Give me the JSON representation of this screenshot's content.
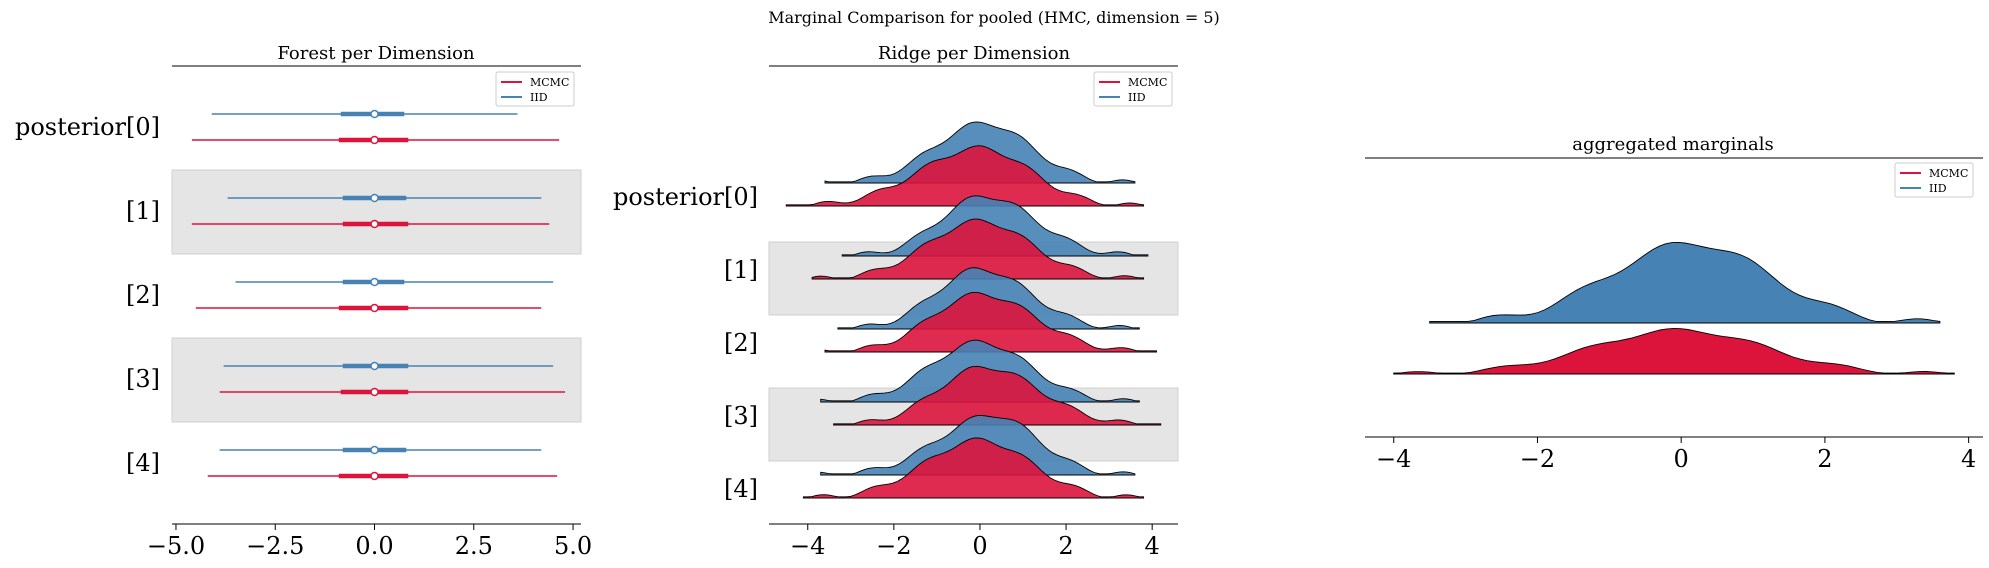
{
  "figure": {
    "suptitle": "Marginal Comparison for pooled (HMC, dimension = 5)"
  },
  "colors": {
    "mcmc": "#dc143c",
    "iid": "#4682b4",
    "band": "#e5e5e5",
    "outline": "#000000"
  },
  "legend": {
    "entries": [
      "MCMC",
      "IID"
    ]
  },
  "chart_data": [
    {
      "type": "forest",
      "title": "Forest per Dimension",
      "series_names": [
        "MCMC",
        "IID"
      ],
      "variables": [
        "posterior[0]",
        "[1]",
        "[2]",
        "[3]",
        "[4]"
      ],
      "xlim": [
        -5.1,
        5.2
      ],
      "xticks": [
        -5.0,
        -2.5,
        0.0,
        2.5,
        5.0
      ],
      "xtick_labels": [
        "−5.0",
        "−2.5",
        "0.0",
        "2.5",
        "5.0"
      ],
      "shaded_rows": [
        1,
        3
      ],
      "intervals": {
        "MCMC": [
          {
            "lo": -4.6,
            "hdi_lo": -0.9,
            "mid": 0.0,
            "hdi_hi": 0.85,
            "hi": 4.65
          },
          {
            "lo": -4.6,
            "hdi_lo": -0.8,
            "mid": 0.0,
            "hdi_hi": 0.85,
            "hi": 4.4
          },
          {
            "lo": -4.5,
            "hdi_lo": -0.9,
            "mid": 0.0,
            "hdi_hi": 0.85,
            "hi": 4.2
          },
          {
            "lo": -3.9,
            "hdi_lo": -0.85,
            "mid": 0.0,
            "hdi_hi": 0.85,
            "hi": 4.8
          },
          {
            "lo": -4.2,
            "hdi_lo": -0.9,
            "mid": 0.0,
            "hdi_hi": 0.85,
            "hi": 4.6
          }
        ],
        "IID": [
          {
            "lo": -4.1,
            "hdi_lo": -0.85,
            "mid": 0.0,
            "hdi_hi": 0.75,
            "hi": 3.6
          },
          {
            "lo": -3.7,
            "hdi_lo": -0.8,
            "mid": 0.0,
            "hdi_hi": 0.8,
            "hi": 4.2
          },
          {
            "lo": -3.5,
            "hdi_lo": -0.8,
            "mid": 0.0,
            "hdi_hi": 0.75,
            "hi": 4.5
          },
          {
            "lo": -3.8,
            "hdi_lo": -0.8,
            "mid": 0.0,
            "hdi_hi": 0.85,
            "hi": 4.5
          },
          {
            "lo": -3.9,
            "hdi_lo": -0.8,
            "mid": 0.0,
            "hdi_hi": 0.8,
            "hi": 4.2
          }
        ]
      }
    },
    {
      "type": "ridge",
      "title": "Ridge per Dimension",
      "series_names": [
        "MCMC",
        "IID"
      ],
      "variables": [
        "posterior[0]",
        "[1]",
        "[2]",
        "[3]",
        "[4]"
      ],
      "xlim": [
        -4.9,
        4.6
      ],
      "xticks": [
        -4,
        -2,
        0,
        2,
        4
      ],
      "xtick_labels": [
        "−4",
        "−2",
        "0",
        "2",
        "4"
      ],
      "shaded_rows": [
        1,
        3
      ],
      "densities": {
        "MCMC": [
          {
            "min": -4.5,
            "max": 3.8,
            "peak": 0.0
          },
          {
            "min": -3.9,
            "max": 3.8,
            "peak": 0.0
          },
          {
            "min": -3.6,
            "max": 4.1,
            "peak": 0.0
          },
          {
            "min": -3.4,
            "max": 4.2,
            "peak": 0.1
          },
          {
            "min": -4.1,
            "max": 3.8,
            "peak": 0.0
          }
        ],
        "IID": [
          {
            "min": -3.6,
            "max": 3.6,
            "peak": 0.1
          },
          {
            "min": -3.2,
            "max": 3.9,
            "peak": 0.1
          },
          {
            "min": -3.3,
            "max": 3.7,
            "peak": 0.0
          },
          {
            "min": -3.7,
            "max": 3.7,
            "peak": 0.0
          },
          {
            "min": -3.7,
            "max": 3.6,
            "peak": 0.3
          }
        ]
      }
    },
    {
      "type": "ridge",
      "title": "aggregated marginals",
      "series_names": [
        "MCMC",
        "IID"
      ],
      "xlim": [
        -4.4,
        4.2
      ],
      "xticks": [
        -4,
        -2,
        0,
        2,
        4
      ],
      "xtick_labels": [
        "−4",
        "−2",
        "0",
        "2",
        "4"
      ],
      "densities": {
        "MCMC": {
          "min": -4.0,
          "max": 3.8,
          "peak": 0.0
        },
        "IID": {
          "min": -3.5,
          "max": 3.6,
          "peak": 0.15
        }
      }
    }
  ]
}
